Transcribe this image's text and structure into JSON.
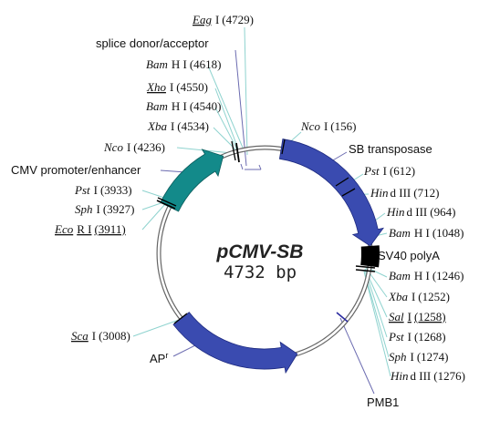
{
  "plasmid": {
    "name": "pCMV-SB",
    "size": "4732 bp"
  },
  "colors": {
    "blue": "#3a4bb0",
    "teal": "#138a8a",
    "black": "#000000",
    "leader_teal": "#8fd3cf",
    "leader_purple": "#6b6bb0"
  },
  "sites": [
    {
      "id": "eag",
      "enz": "Eag",
      "suffix": "I",
      "pos": "(4729)",
      "underline": true
    },
    {
      "id": "bamhi-4618",
      "enz": "Bam",
      "suffix": "H I",
      "pos": "(4618)",
      "underline": false
    },
    {
      "id": "xho",
      "enz": "Xho",
      "suffix": "I",
      "pos": "(4550)",
      "underline": true
    },
    {
      "id": "bamhi-4540",
      "enz": "Bam",
      "suffix": "H I",
      "pos": "(4540)",
      "underline": false
    },
    {
      "id": "xba-4534",
      "enz": "Xba",
      "suffix": "I",
      "pos": "(4534)",
      "underline": false
    },
    {
      "id": "nco-4236",
      "enz": "Nco",
      "suffix": "I",
      "pos": "(4236)",
      "underline": false
    },
    {
      "id": "pst-3933",
      "enz": "Pst",
      "suffix": "I",
      "pos": "(3933)",
      "underline": false
    },
    {
      "id": "sph-3927",
      "enz": "Sph",
      "suffix": "I",
      "pos": "(3927)",
      "underline": false
    },
    {
      "id": "eco-3911",
      "enz": "Eco",
      "suffix": "R I",
      "pos": "(3911)",
      "underline": true
    },
    {
      "id": "sca-3008",
      "enz": "Sca",
      "suffix": "I",
      "pos": "(3008)",
      "underline": true
    },
    {
      "id": "nco-156",
      "enz": "Nco",
      "suffix": "I",
      "pos": "(156)",
      "underline": false
    },
    {
      "id": "pst-612",
      "enz": "Pst",
      "suffix": "I",
      "pos": "(612)",
      "underline": false
    },
    {
      "id": "hind-712",
      "enz": "Hin",
      "suffix": "d III",
      "pos": "(712)",
      "underline": false
    },
    {
      "id": "hind-964",
      "enz": "Hin",
      "suffix": "d III",
      "pos": "(964)",
      "underline": false
    },
    {
      "id": "bamhi-1048",
      "enz": "Bam",
      "suffix": "H I",
      "pos": "(1048)",
      "underline": false
    },
    {
      "id": "bamhi-1246",
      "enz": "Bam",
      "suffix": "H I",
      "pos": "(1246)",
      "underline": false
    },
    {
      "id": "xba-1252",
      "enz": "Xba",
      "suffix": "I",
      "pos": "(1252)",
      "underline": false
    },
    {
      "id": "sal-1258",
      "enz": "Sal",
      "suffix": "I",
      "pos": "(1258)",
      "underline": true
    },
    {
      "id": "pst-1268",
      "enz": "Pst",
      "suffix": "I",
      "pos": "(1268)",
      "underline": false
    },
    {
      "id": "sph-1274",
      "enz": "Sph",
      "suffix": "I",
      "pos": "(1274)",
      "underline": false
    },
    {
      "id": "hind-1276",
      "enz": "Hin",
      "suffix": "d III",
      "pos": "(1276)",
      "underline": false
    }
  ],
  "features": [
    {
      "id": "splice",
      "label": "splice  donor/acceptor"
    },
    {
      "id": "cmv",
      "label": "CMV  promoter/enhancer"
    },
    {
      "id": "sb",
      "label": "SB transposase"
    },
    {
      "id": "sv40",
      "label": "SV40 polyA"
    },
    {
      "id": "pmb1",
      "label": "PMB1"
    },
    {
      "id": "ap",
      "label": "AP",
      "superscript": "r"
    }
  ]
}
